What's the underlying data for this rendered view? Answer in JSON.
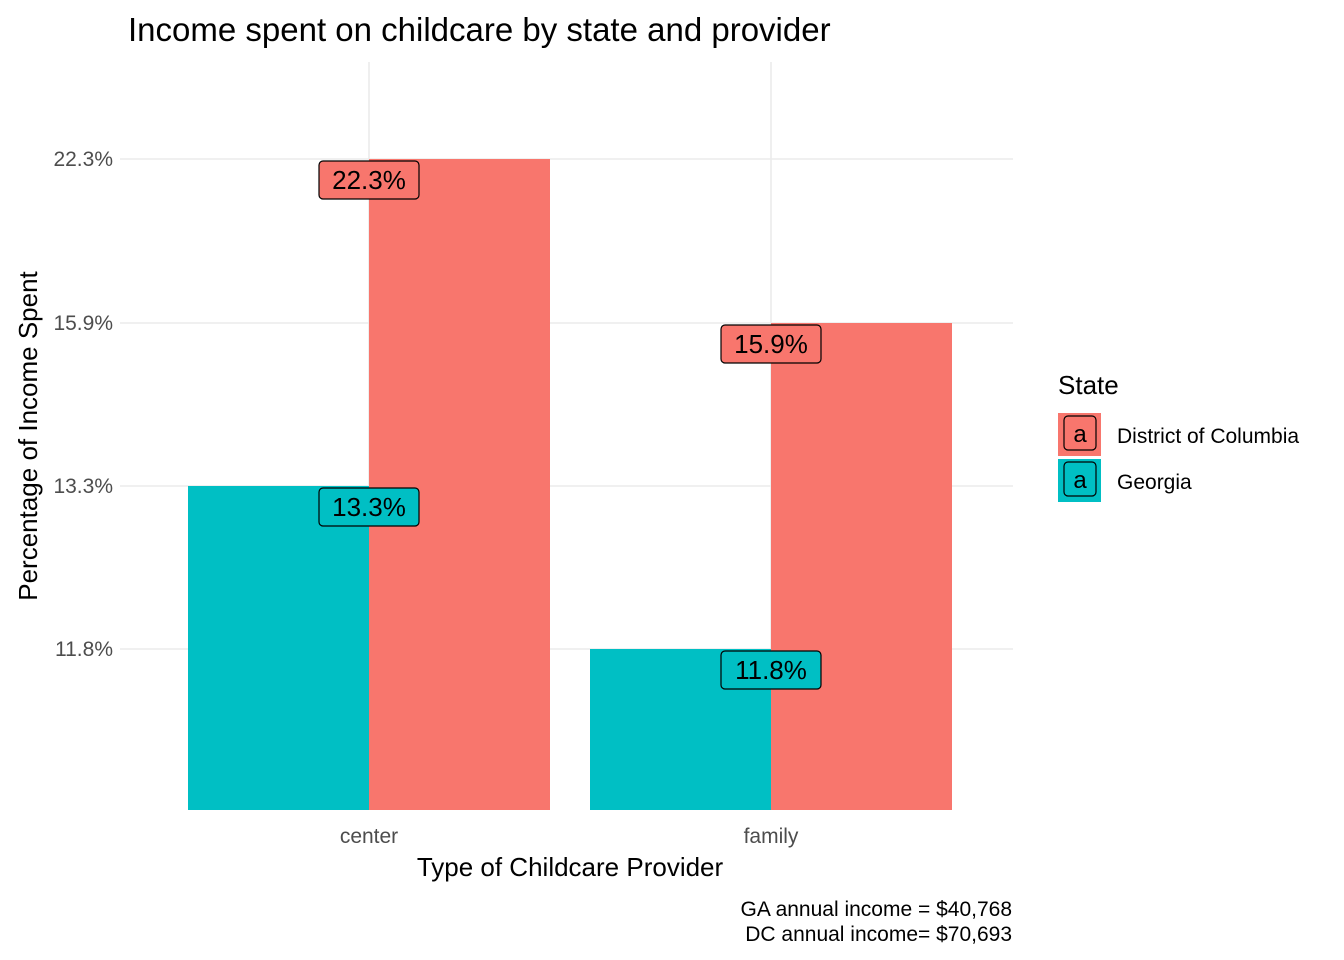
{
  "chart_data": {
    "type": "bar",
    "title": "Income spent on childcare by state and provider",
    "xlabel": "Type of Childcare Provider",
    "ylabel": "Percentage of Income Spent",
    "categories": [
      "center",
      "family"
    ],
    "y_ticks": [
      11.8,
      13.3,
      15.9,
      22.3
    ],
    "y_tick_labels": [
      "11.8%",
      "13.3%",
      "15.9%",
      "22.3%"
    ],
    "series": [
      {
        "name": "Georgia",
        "color": "#00BFC4",
        "values": [
          13.3,
          11.8
        ],
        "labels": [
          "13.3%",
          "11.8%"
        ]
      },
      {
        "name": "District of Columbia",
        "color": "#F8766D",
        "values": [
          22.3,
          15.9
        ],
        "labels": [
          "22.3%",
          "15.9%"
        ]
      }
    ],
    "legend": {
      "title": "State",
      "position": "right",
      "key_glyph": "a",
      "entries": [
        {
          "label": "District of Columbia",
          "color": "#F8766D"
        },
        {
          "label": "Georgia",
          "color": "#00BFC4"
        }
      ]
    },
    "caption": [
      "GA annual income = $40,768",
      "DC annual income= $70,693"
    ],
    "grid": true
  }
}
